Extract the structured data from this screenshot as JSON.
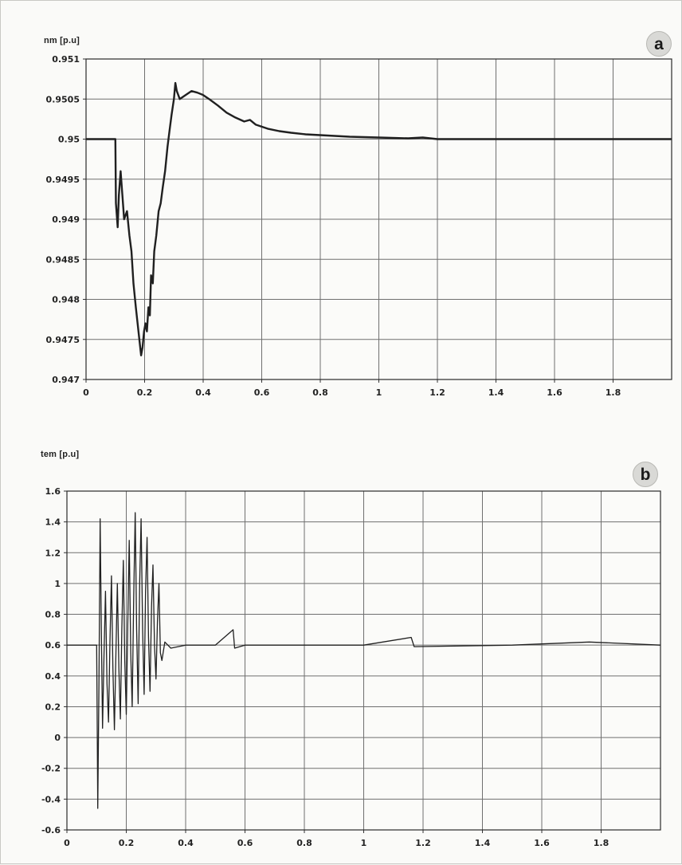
{
  "chart_data": [
    {
      "type": "line",
      "panel_label": "a",
      "ylabel": "nm [p.u]",
      "xlim": [
        0,
        2
      ],
      "ylim": [
        0.947,
        0.951
      ],
      "x_ticks": [
        "0",
        "0.2",
        "0.4",
        "0.6",
        "0.8",
        "1",
        "1.2",
        "1.4",
        "1.6",
        "1.8"
      ],
      "y_ticks": [
        "0.951",
        "0.9505",
        "0.95",
        "0.9495",
        "0.949",
        "0.9485",
        "0.948",
        "0.9475",
        "0.947"
      ],
      "grid": true,
      "series": [
        {
          "color": "#202020",
          "points": [
            [
              0,
              0.95
            ],
            [
              0.1,
              0.95
            ],
            [
              0.102,
              0.9492
            ],
            [
              0.108,
              0.9489
            ],
            [
              0.112,
              0.9493
            ],
            [
              0.118,
              0.9496
            ],
            [
              0.124,
              0.9493
            ],
            [
              0.13,
              0.949
            ],
            [
              0.14,
              0.9491
            ],
            [
              0.148,
              0.9488
            ],
            [
              0.155,
              0.9486
            ],
            [
              0.162,
              0.9482
            ],
            [
              0.17,
              0.9479
            ],
            [
              0.176,
              0.9477
            ],
            [
              0.182,
              0.9475
            ],
            [
              0.188,
              0.9473
            ],
            [
              0.193,
              0.9474
            ],
            [
              0.198,
              0.9476
            ],
            [
              0.203,
              0.9477
            ],
            [
              0.208,
              0.9476
            ],
            [
              0.213,
              0.9479
            ],
            [
              0.218,
              0.9478
            ],
            [
              0.222,
              0.9483
            ],
            [
              0.228,
              0.9482
            ],
            [
              0.233,
              0.9486
            ],
            [
              0.24,
              0.9488
            ],
            [
              0.248,
              0.9491
            ],
            [
              0.255,
              0.9492
            ],
            [
              0.262,
              0.9494
            ],
            [
              0.27,
              0.9496
            ],
            [
              0.278,
              0.9499
            ],
            [
              0.285,
              0.9501
            ],
            [
              0.292,
              0.9503
            ],
            [
              0.3,
              0.9505
            ],
            [
              0.305,
              0.9507
            ],
            [
              0.31,
              0.9506
            ],
            [
              0.32,
              0.9505
            ],
            [
              0.34,
              0.95055
            ],
            [
              0.36,
              0.9506
            ],
            [
              0.38,
              0.95058
            ],
            [
              0.4,
              0.95055
            ],
            [
              0.42,
              0.9505
            ],
            [
              0.45,
              0.95042
            ],
            [
              0.48,
              0.95033
            ],
            [
              0.51,
              0.95027
            ],
            [
              0.54,
              0.95022
            ],
            [
              0.56,
              0.95024
            ],
            [
              0.58,
              0.95018
            ],
            [
              0.62,
              0.95013
            ],
            [
              0.66,
              0.9501
            ],
            [
              0.7,
              0.95008
            ],
            [
              0.75,
              0.95006
            ],
            [
              0.8,
              0.95005
            ],
            [
              0.85,
              0.95004
            ],
            [
              0.9,
              0.95003
            ],
            [
              1.0,
              0.95002
            ],
            [
              1.1,
              0.95001
            ],
            [
              1.15,
              0.95002
            ],
            [
              1.2,
              0.95
            ],
            [
              1.4,
              0.95
            ],
            [
              1.6,
              0.95
            ],
            [
              1.8,
              0.95
            ],
            [
              2.0,
              0.95
            ]
          ]
        }
      ]
    },
    {
      "type": "line",
      "panel_label": "b",
      "ylabel": "tem [p.u]",
      "xlim": [
        0,
        2
      ],
      "ylim": [
        -0.6,
        1.6
      ],
      "x_ticks": [
        "0",
        "0.2",
        "0.4",
        "0.6",
        "0.8",
        "1",
        "1.2",
        "1.4",
        "1.6",
        "1.8"
      ],
      "y_ticks": [
        "1.6",
        "1.4",
        "1.2",
        "1",
        "0.8",
        "0.6",
        "0.4",
        "0.2",
        "0",
        "-0.2",
        "-0.4",
        "-0.6"
      ],
      "grid": true,
      "series": [
        {
          "color": "#202020",
          "points": [
            [
              0,
              0.6
            ],
            [
              0.1,
              0.6
            ],
            [
              0.102,
              0.1
            ],
            [
              0.104,
              -0.46
            ],
            [
              0.108,
              0.35
            ],
            [
              0.112,
              1.42
            ],
            [
              0.116,
              0.7
            ],
            [
              0.12,
              0.06
            ],
            [
              0.125,
              0.55
            ],
            [
              0.13,
              0.95
            ],
            [
              0.135,
              0.35
            ],
            [
              0.14,
              0.1
            ],
            [
              0.145,
              0.62
            ],
            [
              0.15,
              1.05
            ],
            [
              0.155,
              0.45
            ],
            [
              0.16,
              0.05
            ],
            [
              0.165,
              0.55
            ],
            [
              0.17,
              1.0
            ],
            [
              0.175,
              0.45
            ],
            [
              0.18,
              0.12
            ],
            [
              0.185,
              0.7
            ],
            [
              0.19,
              1.15
            ],
            [
              0.195,
              0.5
            ],
            [
              0.2,
              0.15
            ],
            [
              0.205,
              0.75
            ],
            [
              0.21,
              1.28
            ],
            [
              0.215,
              0.55
            ],
            [
              0.22,
              0.2
            ],
            [
              0.225,
              0.9
            ],
            [
              0.23,
              1.46
            ],
            [
              0.235,
              0.7
            ],
            [
              0.24,
              0.22
            ],
            [
              0.245,
              1.0
            ],
            [
              0.25,
              1.42
            ],
            [
              0.255,
              0.7
            ],
            [
              0.26,
              0.28
            ],
            [
              0.265,
              0.95
            ],
            [
              0.27,
              1.3
            ],
            [
              0.275,
              0.65
            ],
            [
              0.28,
              0.3
            ],
            [
              0.285,
              0.85
            ],
            [
              0.29,
              1.12
            ],
            [
              0.295,
              0.6
            ],
            [
              0.3,
              0.38
            ],
            [
              0.305,
              0.75
            ],
            [
              0.31,
              1.0
            ],
            [
              0.315,
              0.55
            ],
            [
              0.32,
              0.5
            ],
            [
              0.33,
              0.62
            ],
            [
              0.34,
              0.6
            ],
            [
              0.35,
              0.58
            ],
            [
              0.4,
              0.6
            ],
            [
              0.5,
              0.6
            ],
            [
              0.56,
              0.7
            ],
            [
              0.565,
              0.58
            ],
            [
              0.6,
              0.6
            ],
            [
              1.0,
              0.6
            ],
            [
              1.16,
              0.65
            ],
            [
              1.17,
              0.59
            ],
            [
              1.5,
              0.6
            ],
            [
              1.76,
              0.62
            ],
            [
              2.0,
              0.6
            ]
          ]
        }
      ]
    }
  ]
}
